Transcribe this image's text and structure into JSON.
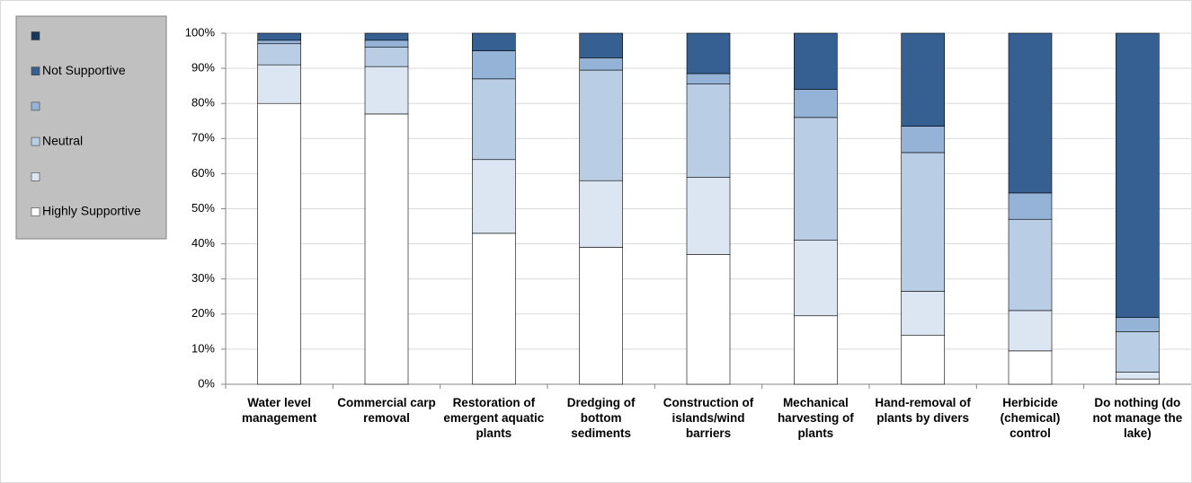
{
  "chart_data": {
    "type": "stacked_bar",
    "categories": [
      "Water level management",
      "Commercial carp removal",
      "Restoration of emergent aquatic plants",
      "Dredging of bottom sediments",
      "Construction of islands/wind barriers",
      "Mechanical harvesting of plants",
      "Hand-removal of plants by divers",
      "Herbicide (chemical) control",
      "Do nothing (do not manage the lake)"
    ],
    "series": [
      {
        "name": "Highly Supportive",
        "color": "#ffffff",
        "values": [
          80,
          77,
          43,
          39,
          37,
          19.5,
          14,
          9.5,
          1.5
        ]
      },
      {
        "name": null,
        "color": "#dce6f2",
        "values": [
          11,
          13.5,
          21,
          19,
          22,
          21.5,
          12.5,
          11.5,
          2
        ]
      },
      {
        "name": "Neutral",
        "color": "#b9cde5",
        "values": [
          6,
          5.5,
          23,
          31.5,
          26.5,
          35,
          39.5,
          26,
          11.5
        ]
      },
      {
        "name": null,
        "color": "#95b3d7",
        "values": [
          1,
          2,
          8,
          3.5,
          3,
          8,
          7.5,
          7.5,
          4
        ]
      },
      {
        "name": "Not Supportive",
        "color": "#376092",
        "values": [
          2,
          2,
          5,
          7,
          11.5,
          16,
          26.5,
          45.5,
          81
        ]
      },
      {
        "name": null,
        "color": "#17375e",
        "values": [
          0,
          0,
          0,
          0,
          0,
          0,
          0,
          0,
          0
        ]
      }
    ],
    "ylim": [
      0,
      100
    ],
    "yticks": [
      {
        "value": 0,
        "label": "0%"
      },
      {
        "value": 10,
        "label": "10%"
      },
      {
        "value": 20,
        "label": "20%"
      },
      {
        "value": 30,
        "label": "30%"
      },
      {
        "value": 40,
        "label": "40%"
      },
      {
        "value": 50,
        "label": "50%"
      },
      {
        "value": 60,
        "label": "60%"
      },
      {
        "value": 70,
        "label": "70%"
      },
      {
        "value": 80,
        "label": "80%"
      },
      {
        "value": 90,
        "label": "90%"
      },
      {
        "value": 100,
        "label": "100%"
      }
    ],
    "grid": true
  }
}
